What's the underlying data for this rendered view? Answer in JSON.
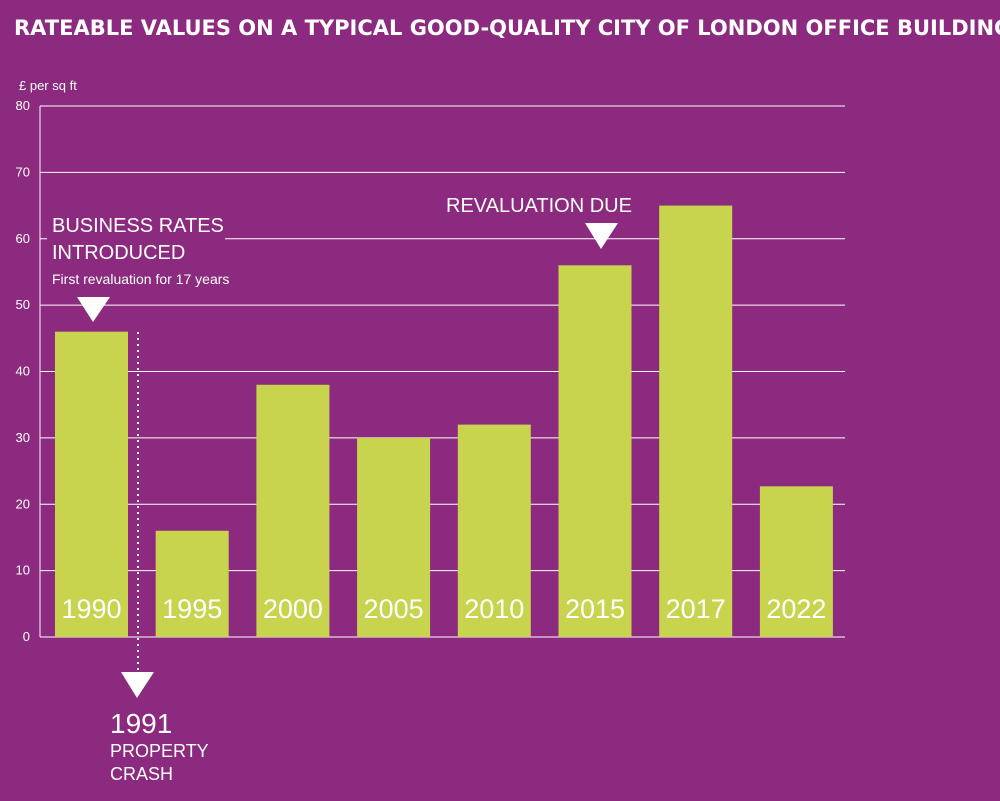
{
  "chart_data": {
    "type": "bar",
    "title": "RATEABLE VALUES ON A TYPICAL GOOD-QUALITY CITY OF LONDON OFFICE BUILDING",
    "ylabel": "£ per sq ft",
    "xlabel": "",
    "ylim": [
      0,
      80
    ],
    "yticks": [
      "0",
      "10",
      "20",
      "30",
      "40",
      "50",
      "60",
      "70",
      "80"
    ],
    "grid": true,
    "categories": [
      "1990",
      "1995",
      "2000",
      "2005",
      "2010",
      "2015",
      "2017",
      "2022"
    ],
    "values": [
      46,
      16,
      38,
      30,
      32,
      56,
      65,
      22.7
    ],
    "colors": {
      "background": "#8b2a7e",
      "bar": "#c9d44e",
      "grid": "#ffffff"
    },
    "annotations": {
      "business_rates_line1": "BUSINESS RATES",
      "business_rates_line2": "INTRODUCED",
      "business_rates_sub": "First revaluation for 17 years",
      "revaluation_due": "REVALUATION DUE",
      "crash_year": "1991",
      "crash_line1": "PROPERTY",
      "crash_line2": "CRASH"
    }
  }
}
